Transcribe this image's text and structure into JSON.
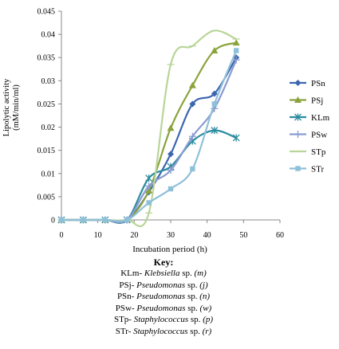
{
  "chart_data": {
    "type": "line",
    "title": "",
    "xlabel": "Incubation period (h)",
    "ylabel": [
      "Lipolytic activity",
      "(mM/min/ml)"
    ],
    "xlim": [
      0,
      60
    ],
    "ylim": [
      0,
      0.045
    ],
    "xticks": [
      "0",
      "10",
      "20",
      "30",
      "40",
      "50",
      "60"
    ],
    "yticks": [
      "0",
      "0.005",
      "0.01",
      "0.015",
      "0.02",
      "0.025",
      "0.03",
      "0.035",
      "0.04",
      "0.045"
    ],
    "grid": false,
    "legend_position": "right",
    "x": [
      0,
      6,
      12,
      18,
      24,
      30,
      36,
      42,
      48
    ],
    "series": [
      {
        "name": "PSn",
        "color": "#3d66b0",
        "marker": "diamond",
        "values": [
          0,
          0,
          0,
          0,
          0.006,
          0.0142,
          0.025,
          0.0272,
          0.035
        ]
      },
      {
        "name": "PSj",
        "color": "#8aa33b",
        "marker": "triangle",
        "values": [
          0,
          0,
          0,
          0,
          0.0063,
          0.0198,
          0.029,
          0.0365,
          0.0382
        ]
      },
      {
        "name": "KLm",
        "color": "#2c8ca0",
        "marker": "star",
        "values": [
          0,
          0,
          0,
          0,
          0.009,
          0.0115,
          0.017,
          0.0193,
          0.0177
        ]
      },
      {
        "name": "PSw",
        "color": "#8a9bd1",
        "marker": "plus",
        "values": [
          0,
          0,
          0,
          0,
          0.0073,
          0.0107,
          0.018,
          0.024,
          0.0345
        ]
      },
      {
        "name": "STp",
        "color": "#b9d598",
        "marker": "line",
        "values": [
          0,
          0,
          0,
          0,
          0.0015,
          0.0335,
          0.0375,
          0.0408,
          0.039
        ]
      },
      {
        "name": "STr",
        "color": "#8fc0d9",
        "marker": "square",
        "values": [
          0,
          0,
          0,
          0,
          0.0037,
          0.0067,
          0.011,
          0.025,
          0.0365
        ]
      }
    ]
  },
  "key": {
    "title": "Key:",
    "entries": [
      {
        "code": "KLm-",
        "genus": "Klebsiella",
        "sp": "sp.",
        "strain": "(m)"
      },
      {
        "code": "PSj-",
        "genus": "Pseudomonas",
        "sp": "sp.",
        "strain": "(j)"
      },
      {
        "code": "PSn-",
        "genus": "Pseudomonas",
        "sp": "sp.",
        "strain": "(n)"
      },
      {
        "code": "PSw-",
        "genus": "Pseudomonas",
        "sp": "sp.",
        "strain": "(w)"
      },
      {
        "code": "STp-",
        "genus": "Staphylococcus",
        "sp": "sp.",
        "strain": "(p)"
      },
      {
        "code": "STr-",
        "genus": "Staphylococcus",
        "sp": "sp.",
        "strain": "(r)"
      }
    ]
  }
}
